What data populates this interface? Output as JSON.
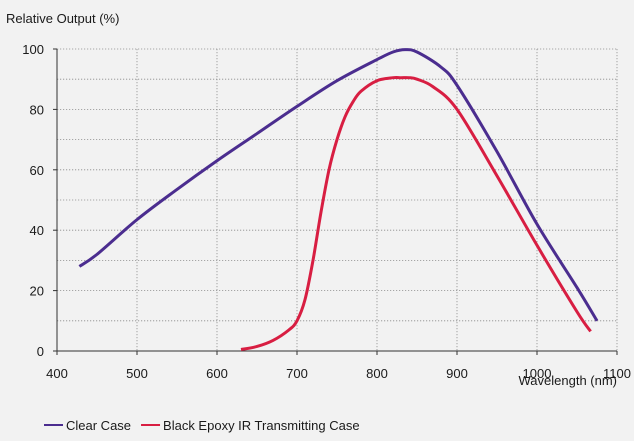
{
  "chart_data": {
    "type": "line",
    "ylabel": "Relative Output (%)",
    "xlabel": "Wavelength (nm)",
    "xlim": [
      400,
      1100
    ],
    "ylim": [
      0,
      100
    ],
    "x_ticks": [
      400,
      500,
      600,
      700,
      800,
      900,
      1000,
      1100
    ],
    "y_ticks": [
      0,
      20,
      40,
      60,
      80,
      100
    ],
    "grid": true,
    "legend_position": "bottom-left",
    "series": [
      {
        "name": "Clear Case",
        "color": "#4b2d8f",
        "x": [
          428,
          450,
          500,
          550,
          600,
          650,
          700,
          750,
          800,
          820,
          835,
          850,
          880,
          900,
          950,
          1000,
          1050,
          1075
        ],
        "y": [
          28,
          32,
          43.5,
          53.5,
          63,
          72,
          81,
          89.5,
          96.5,
          99,
          99.8,
          99,
          94,
          88,
          66,
          42,
          21,
          10
        ]
      },
      {
        "name": "Black Epoxy IR Transmitting Case",
        "color": "#d81e42",
        "x": [
          630,
          650,
          670,
          690,
          700,
          710,
          720,
          730,
          740,
          750,
          760,
          770,
          780,
          800,
          820,
          830,
          840,
          850,
          870,
          900,
          950,
          1000,
          1050,
          1067
        ],
        "y": [
          0.5,
          1.5,
          3.5,
          7,
          10,
          17,
          30,
          46,
          60,
          70,
          77.5,
          82.5,
          86,
          89.5,
          90.5,
          90.5,
          90.5,
          90,
          87.5,
          80,
          58,
          35,
          13,
          6.5
        ]
      }
    ]
  }
}
